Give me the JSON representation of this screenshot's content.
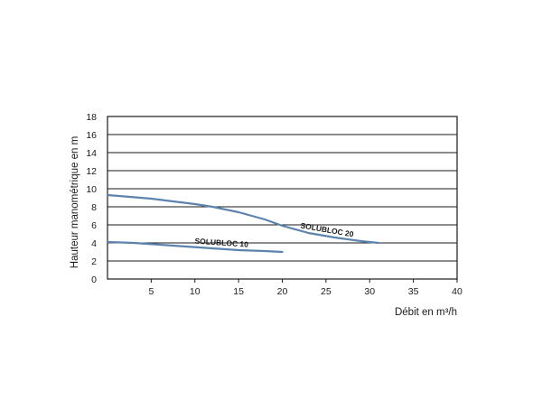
{
  "chart_data": {
    "type": "line",
    "xlabel": "Débit en m³/h",
    "ylabel": "Hauteur manométrique en m",
    "xlim": [
      0,
      40
    ],
    "ylim": [
      0,
      18
    ],
    "x_ticks": [
      5,
      10,
      15,
      20,
      25,
      30,
      35,
      40
    ],
    "y_ticks": [
      0,
      2,
      4,
      6,
      8,
      10,
      12,
      14,
      16,
      18
    ],
    "grid": "horizontal",
    "line_color": "#5b83ad",
    "series": [
      {
        "name": "SOLUBLOC 20",
        "x": [
          0,
          5,
          10,
          12,
          15,
          18,
          20,
          23,
          26,
          29,
          31
        ],
        "y": [
          9.3,
          8.9,
          8.3,
          8.0,
          7.4,
          6.6,
          5.9,
          5.1,
          4.6,
          4.2,
          4.0
        ],
        "label_at": 25
      },
      {
        "name": "SOLUBLOC 10",
        "x": [
          0,
          3,
          6,
          9,
          12,
          15,
          18,
          20
        ],
        "y": [
          4.1,
          4.0,
          3.8,
          3.6,
          3.4,
          3.2,
          3.1,
          3.0
        ],
        "label_at": 13
      }
    ]
  }
}
